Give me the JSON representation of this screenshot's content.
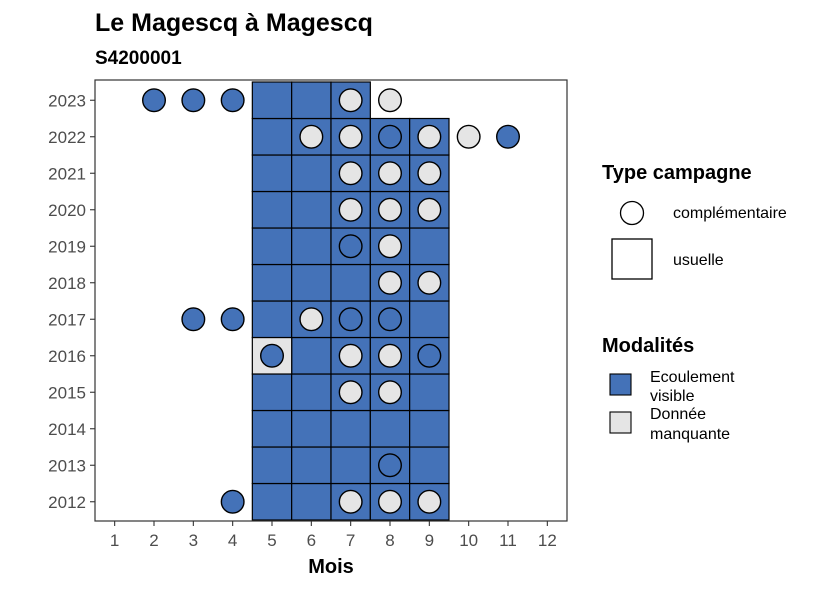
{
  "chart_data": {
    "type": "heatmap",
    "title": "Le Magescq à Magescq",
    "subtitle": "S4200001",
    "xlabel": "Mois",
    "ylabel": "",
    "x_ticks": [
      1,
      2,
      3,
      4,
      5,
      6,
      7,
      8,
      9,
      10,
      11,
      12
    ],
    "y_ticks": [
      2012,
      2013,
      2014,
      2015,
      2016,
      2017,
      2018,
      2019,
      2020,
      2021,
      2022,
      2023
    ],
    "xlim": [
      0.5,
      12.5
    ],
    "colors": {
      "Ecoulement visible": "#4472b8",
      "Donnée manquante": "#e5e5e5"
    },
    "legend": {
      "campaign_title": "Type campagne",
      "campaign_items": [
        {
          "shape": "circle",
          "label": "complémentaire"
        },
        {
          "shape": "square",
          "label": "usuelle"
        }
      ],
      "modality_title": "Modalités",
      "modality_items": [
        {
          "key": "Ecoulement visible",
          "label_lines": [
            "Ecoulement",
            "visible"
          ]
        },
        {
          "key": "Donnée manquante",
          "label_lines": [
            "Donnée",
            "manquante"
          ]
        }
      ]
    },
    "usuelle": [
      {
        "year": 2012,
        "months": [
          5,
          6,
          7,
          8,
          9
        ],
        "modality": "Ecoulement visible"
      },
      {
        "year": 2013,
        "months": [
          5,
          6,
          7,
          8,
          9
        ],
        "modality": "Ecoulement visible"
      },
      {
        "year": 2014,
        "months": [
          5,
          6,
          7,
          8,
          9
        ],
        "modality": "Ecoulement visible"
      },
      {
        "year": 2015,
        "months": [
          5,
          6,
          7,
          8,
          9
        ],
        "modality": "Ecoulement visible"
      },
      {
        "year": 2016,
        "months": [
          6,
          7,
          8,
          9
        ],
        "modality": "Ecoulement visible"
      },
      {
        "year": 2016,
        "months": [
          5
        ],
        "modality": "Donnée manquante"
      },
      {
        "year": 2017,
        "months": [
          5,
          6,
          7,
          8,
          9
        ],
        "modality": "Ecoulement visible"
      },
      {
        "year": 2018,
        "months": [
          5,
          6,
          7,
          8,
          9
        ],
        "modality": "Ecoulement visible"
      },
      {
        "year": 2019,
        "months": [
          5,
          6,
          7,
          8,
          9
        ],
        "modality": "Ecoulement visible"
      },
      {
        "year": 2020,
        "months": [
          5,
          6,
          7,
          8,
          9
        ],
        "modality": "Ecoulement visible"
      },
      {
        "year": 2021,
        "months": [
          5,
          6,
          7,
          8,
          9
        ],
        "modality": "Ecoulement visible"
      },
      {
        "year": 2022,
        "months": [
          5,
          6,
          7,
          8,
          9
        ],
        "modality": "Ecoulement visible"
      },
      {
        "year": 2023,
        "months": [
          5,
          6,
          7
        ],
        "modality": "Ecoulement visible"
      }
    ],
    "complementaire": [
      {
        "year": 2023,
        "month": 2,
        "modality": "Ecoulement visible"
      },
      {
        "year": 2023,
        "month": 3,
        "modality": "Ecoulement visible"
      },
      {
        "year": 2023,
        "month": 4,
        "modality": "Ecoulement visible"
      },
      {
        "year": 2023,
        "month": 7,
        "modality": "Donnée manquante"
      },
      {
        "year": 2023,
        "month": 8,
        "modality": "Donnée manquante"
      },
      {
        "year": 2022,
        "month": 6,
        "modality": "Donnée manquante"
      },
      {
        "year": 2022,
        "month": 7,
        "modality": "Donnée manquante"
      },
      {
        "year": 2022,
        "month": 8,
        "modality": "Ecoulement visible"
      },
      {
        "year": 2022,
        "month": 9,
        "modality": "Donnée manquante"
      },
      {
        "year": 2022,
        "month": 10,
        "modality": "Donnée manquante"
      },
      {
        "year": 2022,
        "month": 11,
        "modality": "Ecoulement visible"
      },
      {
        "year": 2021,
        "month": 7,
        "modality": "Donnée manquante"
      },
      {
        "year": 2021,
        "month": 8,
        "modality": "Donnée manquante"
      },
      {
        "year": 2021,
        "month": 9,
        "modality": "Donnée manquante"
      },
      {
        "year": 2020,
        "month": 7,
        "modality": "Donnée manquante"
      },
      {
        "year": 2020,
        "month": 8,
        "modality": "Donnée manquante"
      },
      {
        "year": 2020,
        "month": 9,
        "modality": "Donnée manquante"
      },
      {
        "year": 2019,
        "month": 7,
        "modality": "Ecoulement visible"
      },
      {
        "year": 2019,
        "month": 8,
        "modality": "Donnée manquante"
      },
      {
        "year": 2018,
        "month": 8,
        "modality": "Donnée manquante"
      },
      {
        "year": 2018,
        "month": 9,
        "modality": "Donnée manquante"
      },
      {
        "year": 2017,
        "month": 3,
        "modality": "Ecoulement visible"
      },
      {
        "year": 2017,
        "month": 4,
        "modality": "Ecoulement visible"
      },
      {
        "year": 2017,
        "month": 6,
        "modality": "Donnée manquante"
      },
      {
        "year": 2017,
        "month": 7,
        "modality": "Ecoulement visible"
      },
      {
        "year": 2017,
        "month": 8,
        "modality": "Ecoulement visible"
      },
      {
        "year": 2016,
        "month": 5,
        "modality": "Ecoulement visible"
      },
      {
        "year": 2016,
        "month": 7,
        "modality": "Donnée manquante"
      },
      {
        "year": 2016,
        "month": 8,
        "modality": "Donnée manquante"
      },
      {
        "year": 2016,
        "month": 9,
        "modality": "Ecoulement visible"
      },
      {
        "year": 2015,
        "month": 7,
        "modality": "Donnée manquante"
      },
      {
        "year": 2015,
        "month": 8,
        "modality": "Donnée manquante"
      },
      {
        "year": 2013,
        "month": 8,
        "modality": "Ecoulement visible"
      },
      {
        "year": 2012,
        "month": 4,
        "modality": "Ecoulement visible"
      },
      {
        "year": 2012,
        "month": 7,
        "modality": "Donnée manquante"
      },
      {
        "year": 2012,
        "month": 8,
        "modality": "Donnée manquante"
      },
      {
        "year": 2012,
        "month": 9,
        "modality": "Donnée manquante"
      }
    ]
  }
}
